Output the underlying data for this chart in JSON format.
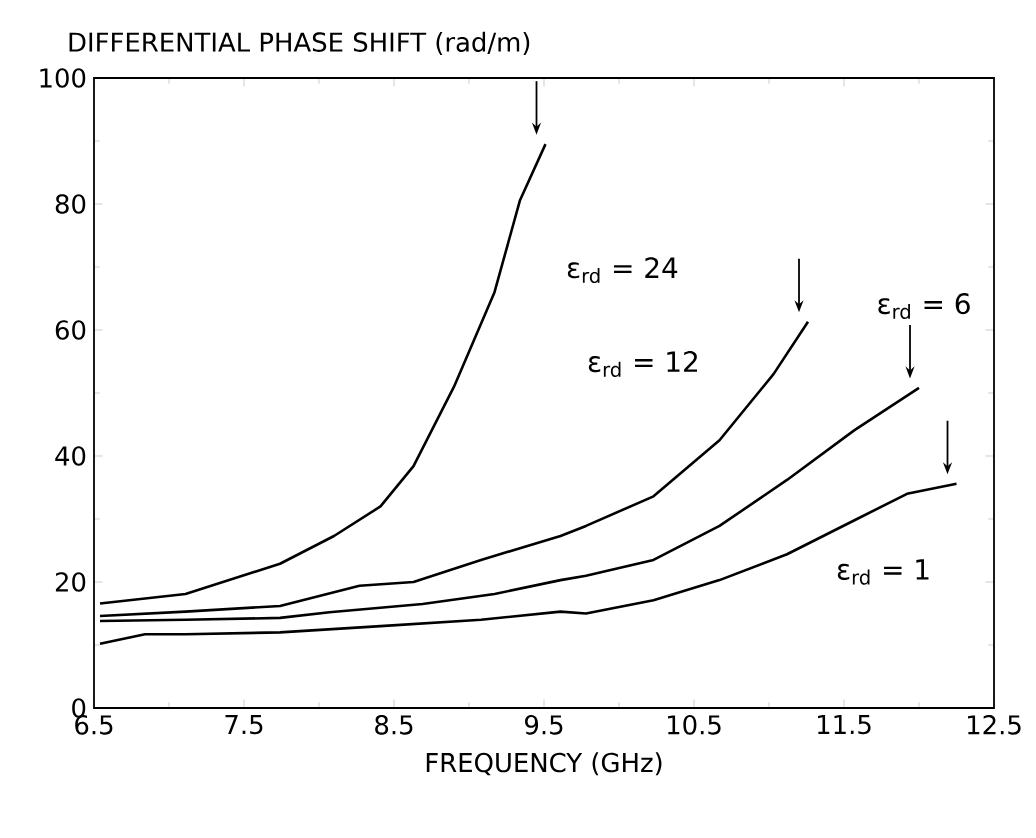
{
  "chart_data": {
    "type": "line",
    "ylabel": "DIFFERENTIAL PHASE SHIFT (rad/m)",
    "xlabel": "FREQUENCY (GHz)",
    "xlim": [
      6.5,
      12.5
    ],
    "xticks": [
      6.5,
      7.5,
      8.5,
      9.5,
      10.5,
      11.5,
      12.5
    ],
    "ylim": [
      0,
      100
    ],
    "yticks": [
      0,
      20,
      40,
      60,
      80,
      100
    ],
    "grid": false,
    "line_style": "solid",
    "series": [
      {
        "name": "ε$_{rd}$ = 24",
        "color": "#000000",
        "x": [
          6.54,
          7.11,
          7.74,
          8.1,
          8.41,
          8.63,
          8.9,
          9.17,
          9.34,
          9.51
        ],
        "values": [
          16.6,
          18.1,
          22.9,
          27.3,
          32,
          38.4,
          51,
          66,
          80.6,
          89.5
        ]
      },
      {
        "name": "ε$_{rd}$ = 12",
        "color": "#000000",
        "x": [
          6.54,
          7.11,
          7.74,
          8.27,
          8.63,
          9.08,
          9.61,
          9.78,
          10.23,
          10.67,
          11.03,
          11.26
        ],
        "values": [
          14.6,
          15.3,
          16.2,
          19.4,
          20,
          23.5,
          27.3,
          28.9,
          33.6,
          42.5,
          53,
          61.3
        ]
      },
      {
        "name": "ε$_{rd}$ = 6",
        "color": "#000000",
        "x": [
          6.54,
          7.11,
          7.74,
          8.07,
          8.69,
          9.17,
          9.61,
          9.78,
          10.23,
          10.67,
          11.12,
          11.57,
          12.0
        ],
        "values": [
          13.8,
          14,
          14.3,
          15.2,
          16.5,
          18.1,
          20.3,
          21,
          23.5,
          28.9,
          36.2,
          44.1,
          50.8
        ]
      },
      {
        "name": "ε$_{rd}$ = 1",
        "color": "#000000",
        "x": [
          6.54,
          6.84,
          7.11,
          7.74,
          8.41,
          9.08,
          9.61,
          9.78,
          10.23,
          10.67,
          11.12,
          11.57,
          11.92,
          12.25
        ],
        "values": [
          10.2,
          11.7,
          11.7,
          12,
          13,
          14,
          15.3,
          15,
          17.1,
          20.3,
          24.4,
          29.8,
          34,
          35.6
        ]
      }
    ]
  }
}
